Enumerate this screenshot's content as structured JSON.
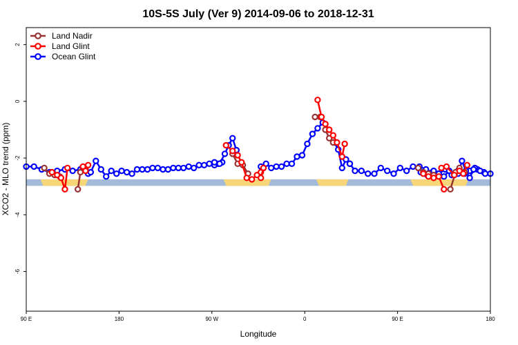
{
  "chart_data": {
    "type": "line",
    "title": "10S-5S July (Ver 9)   2014-09-06 to 2018-12-31",
    "xlabel": "Longitude",
    "ylabel": "XCO2 - MLO trend (ppm)",
    "xlim": [
      0,
      360
    ],
    "ylim": [
      -7.4,
      2.6
    ],
    "x_ticks": [
      {
        "value": 0,
        "label": "90 E"
      },
      {
        "value": 72,
        "label": "180"
      },
      {
        "value": 144,
        "label": "90 W"
      },
      {
        "value": 216,
        "label": "0"
      },
      {
        "value": 288,
        "label": "90 E"
      },
      {
        "value": 360,
        "label": "180"
      }
    ],
    "y_ticks": [
      {
        "value": 2,
        "label": "2"
      },
      {
        "value": 0,
        "label": "0"
      },
      {
        "value": -2,
        "label": "-2"
      },
      {
        "value": -4,
        "label": "-4"
      },
      {
        "value": -6,
        "label": "-6"
      }
    ],
    "legend": {
      "position": "top-left",
      "entries": [
        {
          "name": "Land Nadir",
          "color": "#993333"
        },
        {
          "name": "Land Glint",
          "color": "#ff0000"
        },
        {
          "name": "Ocean Glint",
          "color": "#0000ff"
        }
      ]
    },
    "land_ocean_band": {
      "y_range": [
        -2.75,
        -2.98
      ],
      "ocean_color": "#a3bbd9",
      "land_color": "#f7d67a",
      "land_segments": [
        [
          11,
          48
        ],
        [
          153,
          190
        ],
        [
          225,
          250
        ],
        [
          298,
          343
        ]
      ]
    },
    "series": [
      {
        "name": "Ocean Glint",
        "color": "#0000ff",
        "segments": [
          {
            "x": [
              0,
              6,
              12,
              18,
              24,
              30,
              36,
              42,
              48
            ],
            "y": [
              -2.3,
              -2.3,
              -2.4,
              -2.5,
              -2.45,
              -2.4,
              -2.45,
              -2.4,
              -2.55
            ]
          },
          {
            "x": [
              44,
              50,
              54,
              58,
              62,
              66,
              70,
              74,
              78,
              82,
              86,
              90,
              94,
              98,
              102,
              106,
              110,
              114,
              118,
              122,
              126,
              130,
              134,
              138,
              142,
              146,
              149,
              152
            ],
            "y": [
              -2.35,
              -2.5,
              -2.1,
              -2.4,
              -2.65,
              -2.45,
              -2.55,
              -2.45,
              -2.5,
              -2.55,
              -2.4,
              -2.4,
              -2.4,
              -2.35,
              -2.35,
              -2.4,
              -2.4,
              -2.35,
              -2.35,
              -2.35,
              -2.3,
              -2.35,
              -2.25,
              -2.25,
              -2.2,
              -2.25,
              -2.2,
              -2.15
            ]
          },
          {
            "x": [
              146,
              150,
              154,
              157,
              160,
              163
            ],
            "y": [
              -2.15,
              -2.2,
              -1.85,
              -1.55,
              -1.3,
              -1.72
            ]
          },
          {
            "x": [
              182,
              186,
              190,
              194,
              198,
              202,
              206,
              210,
              214,
              218,
              222,
              226,
              230
            ],
            "y": [
              -2.3,
              -2.2,
              -2.35,
              -2.3,
              -2.3,
              -2.2,
              -2.2,
              -1.95,
              -1.9,
              -1.5,
              -1.15,
              -0.95,
              -0.75
            ]
          },
          {
            "x": [
              239,
              242,
              245,
              248,
              251
            ],
            "y": [
              -1.45,
              -1.7,
              -2.35,
              -2.05,
              -2.2
            ]
          },
          {
            "x": [
              251,
              255,
              260,
              265,
              270,
              275,
              280,
              285,
              290,
              295,
              300,
              305,
              310,
              315,
              320,
              325,
              330,
              335,
              340,
              345,
              350,
              355,
              360
            ],
            "y": [
              -2.2,
              -2.45,
              -2.45,
              -2.55,
              -2.55,
              -2.35,
              -2.45,
              -2.55,
              -2.35,
              -2.45,
              -2.3,
              -2.3,
              -2.4,
              -2.5,
              -2.55,
              -2.4,
              -2.6,
              -2.45,
              -2.5,
              -2.45,
              -2.4,
              -2.5,
              -2.55
            ]
          },
          {
            "x": [
              306,
              311,
              316,
              320,
              324,
              328,
              332,
              336,
              340,
              344,
              348,
              352,
              356
            ],
            "y": [
              -2.5,
              -2.6,
              -2.45,
              -2.55,
              -2.65,
              -2.45,
              -2.6,
              -2.45,
              -2.55,
              -2.45,
              -2.35,
              -2.45,
              -2.55
            ]
          },
          {
            "x": [
              335,
              338,
              341,
              344,
              347
            ],
            "y": [
              -2.55,
              -2.1,
              -2.45,
              -2.7,
              -2.4
            ]
          }
        ]
      },
      {
        "name": "Land Nadir",
        "color": "#993333",
        "segments": [
          {
            "x": [
              14,
              18,
              22,
              26
            ],
            "y": [
              -2.35,
              -2.55,
              -2.6,
              -2.65
            ]
          },
          {
            "x": [
              40,
              42,
              44,
              46
            ],
            "y": [
              -3.1,
              -2.5,
              -2.3,
              -2.4
            ]
          },
          {
            "x": [
              160,
              164,
              168,
              172
            ],
            "y": [
              -1.85,
              -2.2,
              -2.25,
              -2.55
            ]
          },
          {
            "x": [
              224,
              228
            ],
            "y": [
              -0.55,
              -0.55
            ]
          },
          {
            "x": [
              232,
              235,
              238
            ],
            "y": [
              -1.0,
              -1.3,
              -1.45
            ]
          },
          {
            "x": [
              304,
              308,
              312,
              316
            ],
            "y": [
              -2.35,
              -2.5,
              -2.55,
              -2.6
            ]
          },
          {
            "x": [
              329,
              333,
              336,
              340
            ],
            "y": [
              -3.1,
              -2.5,
              -2.35,
              -2.5
            ]
          }
        ]
      },
      {
        "name": "Land Glint",
        "color": "#ff0000",
        "segments": [
          {
            "x": [
              20,
              24,
              27,
              30,
              32
            ],
            "y": [
              -2.5,
              -2.6,
              -2.7,
              -3.1,
              -2.35
            ]
          },
          {
            "x": [
              44,
              46,
              48
            ],
            "y": [
              -2.3,
              -2.45,
              -2.25
            ]
          },
          {
            "x": [
              155,
              160,
              164,
              167,
              171,
              175,
              179,
              182,
              184
            ],
            "y": [
              -1.55,
              -1.75,
              -1.9,
              -2.15,
              -2.7,
              -2.75,
              -2.6,
              -2.5,
              -2.35
            ]
          },
          {
            "x": [
              182,
              184
            ],
            "y": [
              -2.7,
              -2.35
            ]
          },
          {
            "x": [
              226,
              229,
              232,
              235,
              238,
              241,
              245,
              247
            ],
            "y": [
              0.05,
              -0.55,
              -0.8,
              -1.0,
              -1.2,
              -1.45,
              -1.95,
              -1.5
            ]
          },
          {
            "x": [
              308,
              312,
              316,
              320,
              324
            ],
            "y": [
              -2.55,
              -2.65,
              -2.7,
              -2.65,
              -3.1
            ]
          },
          {
            "x": [
              322,
              326,
              332
            ],
            "y": [
              -2.35,
              -2.3,
              -2.6
            ]
          },
          {
            "x": [
              336,
              339,
              342
            ],
            "y": [
              -2.45,
              -2.55,
              -2.25
            ]
          }
        ]
      }
    ]
  }
}
